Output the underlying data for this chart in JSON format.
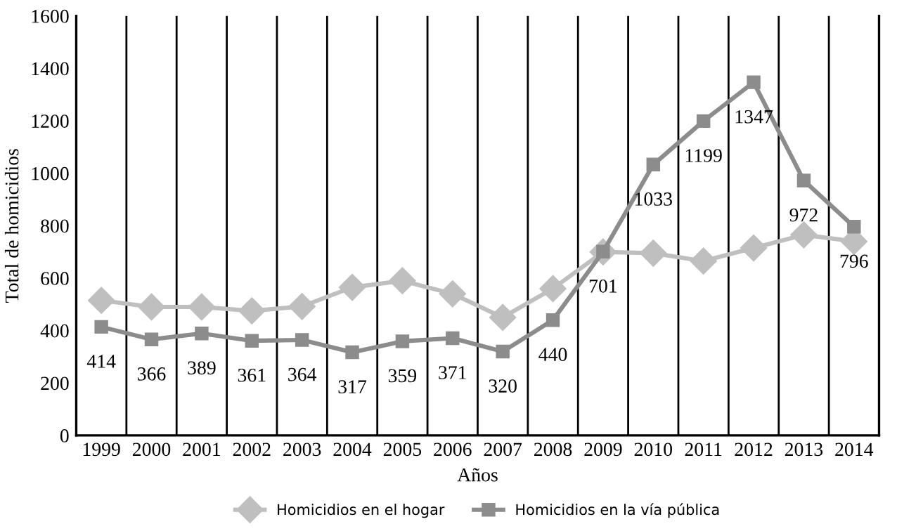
{
  "chart_data": {
    "type": "line",
    "xlabel": "Años",
    "ylabel": "Total de homicidios",
    "categories": [
      "1999",
      "2000",
      "2001",
      "2002",
      "2003",
      "2004",
      "2005",
      "2006",
      "2007",
      "2008",
      "2009",
      "2010",
      "2011",
      "2012",
      "2013",
      "2014"
    ],
    "series": [
      {
        "name": "Homicidios en el hogar",
        "color": "#bfbfbf",
        "marker": "diamond",
        "values": [
          515,
          490,
          490,
          475,
          492,
          565,
          590,
          540,
          450,
          560,
          700,
          695,
          665,
          715,
          765,
          740
        ]
      },
      {
        "name": "Homicidios en la vía pública",
        "color": "#8c8c8c",
        "marker": "square",
        "values": [
          414,
          366,
          389,
          361,
          364,
          317,
          359,
          371,
          320,
          440,
          701,
          1033,
          1199,
          1347,
          972,
          796
        ],
        "value_labels": [
          "414",
          "366",
          "389",
          "361",
          "364",
          "317",
          "359",
          "371",
          "320",
          "440",
          "701",
          "1033",
          "1199",
          "1347",
          "972",
          "796"
        ]
      }
    ],
    "ylim": [
      0,
      1600
    ],
    "yticks": [
      0,
      200,
      400,
      600,
      800,
      1000,
      1200,
      1400,
      1600
    ],
    "grid": "x",
    "legend": "bottom",
    "line_style": "solid"
  }
}
